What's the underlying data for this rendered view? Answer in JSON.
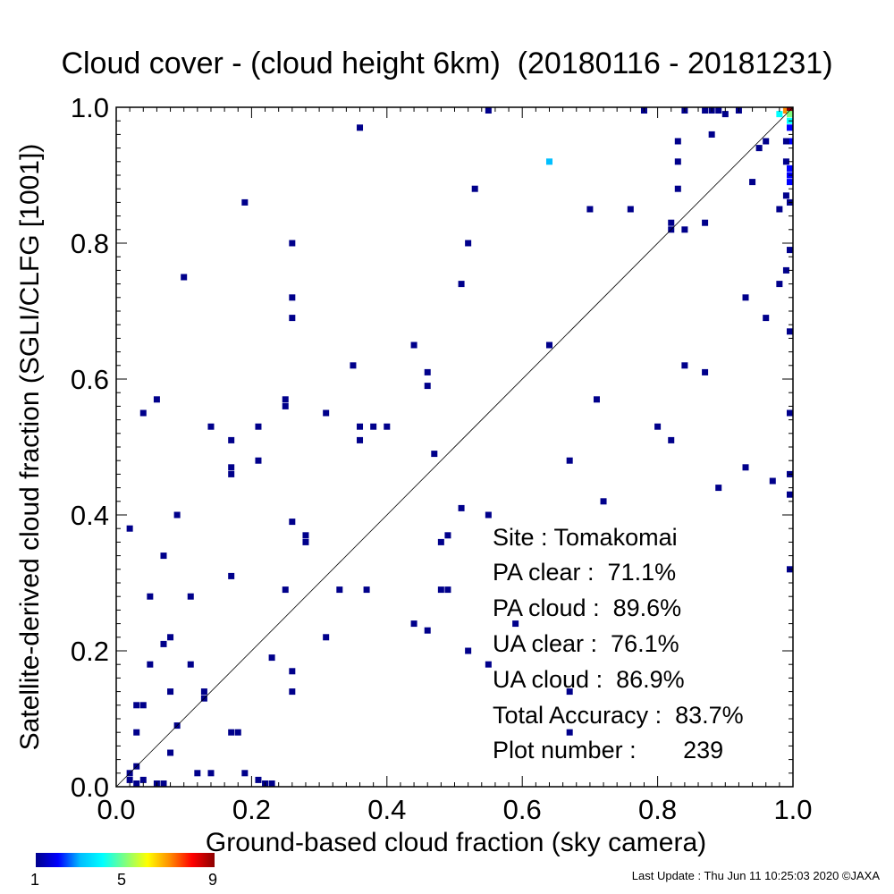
{
  "title": "Cloud cover - (cloud height 6km)  (20180116 - 20181231)",
  "footer": "Last Update : Thu Jun 11 10:25:03 2020  ©JAXA",
  "colorbar": {
    "labels": [
      "1",
      "5",
      "9"
    ],
    "colors": [
      "#00008b",
      "#0000ff",
      "#00bfff",
      "#00ffff",
      "#7fff7f",
      "#ffff00",
      "#ff8c00",
      "#ff0000",
      "#8b0000"
    ]
  },
  "stats": {
    "site": "Site : Tomakomai",
    "pa_clear": "PA clear :  71.1%",
    "pa_cloud": "PA cloud :  89.6%",
    "ua_clear": "UA clear :  76.1%",
    "ua_cloud": "UA cloud :  86.9%",
    "total_accuracy": "Total Accuracy :  83.7%",
    "plot_number": "Plot number :       239"
  },
  "chart_data": {
    "type": "heatmap",
    "xlabel": "Ground-based cloud fraction (sky camera)",
    "ylabel": "Satellite-derived cloud fraction (SGLI/CLFG [1001])",
    "xlim": [
      0.0,
      1.0
    ],
    "ylim": [
      0.0,
      1.0
    ],
    "x_ticks": [
      "0.0",
      "0.2",
      "0.4",
      "0.6",
      "0.8",
      "1.0"
    ],
    "y_ticks": [
      "0.0",
      "0.2",
      "0.4",
      "0.6",
      "0.8",
      "1.0"
    ],
    "diagonal_line": true,
    "color_scale_range": [
      1,
      9
    ],
    "points": [
      [
        0.55,
        1.0,
        1
      ],
      [
        0.36,
        0.97,
        1
      ],
      [
        0.64,
        0.92,
        3
      ],
      [
        0.53,
        0.88,
        1
      ],
      [
        0.19,
        0.86,
        1
      ],
      [
        0.7,
        0.85,
        1
      ],
      [
        0.76,
        0.85,
        1
      ],
      [
        0.26,
        0.8,
        1
      ],
      [
        0.52,
        0.8,
        1
      ],
      [
        0.1,
        0.75,
        1
      ],
      [
        0.51,
        0.74,
        1
      ],
      [
        0.26,
        0.72,
        1
      ],
      [
        0.26,
        0.69,
        1
      ],
      [
        0.44,
        0.65,
        1
      ],
      [
        0.64,
        0.65,
        1
      ],
      [
        0.35,
        0.62,
        1
      ],
      [
        0.46,
        0.61,
        1
      ],
      [
        0.46,
        0.59,
        1
      ],
      [
        0.06,
        0.57,
        1
      ],
      [
        0.25,
        0.57,
        1
      ],
      [
        0.25,
        0.56,
        1
      ],
      [
        0.04,
        0.55,
        1
      ],
      [
        0.31,
        0.55,
        1
      ],
      [
        0.71,
        0.57,
        1
      ],
      [
        0.14,
        0.53,
        1
      ],
      [
        0.21,
        0.53,
        1
      ],
      [
        0.36,
        0.53,
        1
      ],
      [
        0.38,
        0.53,
        1
      ],
      [
        0.4,
        0.53,
        1
      ],
      [
        0.17,
        0.51,
        1
      ],
      [
        0.36,
        0.51,
        1
      ],
      [
        0.8,
        0.53,
        1
      ],
      [
        0.82,
        0.51,
        1
      ],
      [
        0.47,
        0.49,
        1
      ],
      [
        0.21,
        0.48,
        1
      ],
      [
        0.67,
        0.48,
        1
      ],
      [
        0.17,
        0.47,
        1
      ],
      [
        0.17,
        0.46,
        1
      ],
      [
        0.93,
        0.47,
        1
      ],
      [
        0.97,
        0.45,
        1
      ],
      [
        0.89,
        0.44,
        1
      ],
      [
        0.72,
        0.42,
        1
      ],
      [
        0.51,
        0.41,
        1
      ],
      [
        0.09,
        0.4,
        1
      ],
      [
        0.55,
        0.4,
        1
      ],
      [
        0.26,
        0.39,
        1
      ],
      [
        0.02,
        0.38,
        1
      ],
      [
        0.28,
        0.37,
        1
      ],
      [
        0.49,
        0.37,
        1
      ],
      [
        0.28,
        0.36,
        1
      ],
      [
        0.48,
        0.36,
        1
      ],
      [
        0.07,
        0.34,
        1
      ],
      [
        0.17,
        0.31,
        1
      ],
      [
        0.25,
        0.29,
        1
      ],
      [
        0.33,
        0.29,
        1
      ],
      [
        0.37,
        0.29,
        1
      ],
      [
        0.48,
        0.29,
        1
      ],
      [
        0.49,
        0.29,
        1
      ],
      [
        0.05,
        0.28,
        1
      ],
      [
        0.11,
        0.28,
        1
      ],
      [
        0.44,
        0.24,
        1
      ],
      [
        0.46,
        0.23,
        1
      ],
      [
        0.59,
        0.24,
        1
      ],
      [
        0.31,
        0.22,
        1
      ],
      [
        0.08,
        0.22,
        1
      ],
      [
        0.07,
        0.21,
        1
      ],
      [
        0.52,
        0.2,
        1
      ],
      [
        0.23,
        0.19,
        1
      ],
      [
        0.05,
        0.18,
        1
      ],
      [
        0.11,
        0.18,
        1
      ],
      [
        0.55,
        0.18,
        1
      ],
      [
        0.26,
        0.17,
        1
      ],
      [
        0.08,
        0.14,
        1
      ],
      [
        0.13,
        0.14,
        1
      ],
      [
        0.26,
        0.14,
        1
      ],
      [
        0.67,
        0.14,
        1
      ],
      [
        0.13,
        0.13,
        1
      ],
      [
        0.03,
        0.12,
        1
      ],
      [
        0.04,
        0.12,
        1
      ],
      [
        0.09,
        0.09,
        1
      ],
      [
        0.03,
        0.08,
        1
      ],
      [
        0.17,
        0.08,
        1
      ],
      [
        0.18,
        0.08,
        1
      ],
      [
        0.67,
        0.08,
        1
      ],
      [
        0.08,
        0.05,
        1
      ],
      [
        0.03,
        0.03,
        1
      ],
      [
        0.02,
        0.02,
        1
      ],
      [
        0.12,
        0.02,
        1
      ],
      [
        0.14,
        0.02,
        1
      ],
      [
        0.19,
        0.02,
        1
      ],
      [
        0.02,
        0.01,
        1
      ],
      [
        0.04,
        0.01,
        1
      ],
      [
        0.21,
        0.01,
        1
      ],
      [
        0.22,
        0.0,
        1
      ],
      [
        0.23,
        0.0,
        1
      ],
      [
        0.06,
        0.0,
        1
      ],
      [
        0.07,
        0.0,
        1
      ],
      [
        0.03,
        0.0,
        1
      ],
      [
        0.78,
        1.0,
        1
      ],
      [
        0.84,
        1.0,
        1
      ],
      [
        0.87,
        1.0,
        1
      ],
      [
        0.88,
        1.0,
        1
      ],
      [
        0.89,
        1.0,
        1
      ],
      [
        0.9,
        0.99,
        1
      ],
      [
        0.92,
        1.0,
        1
      ],
      [
        0.98,
        0.99,
        4
      ],
      [
        0.99,
        1.0,
        7
      ],
      [
        1.0,
        1.0,
        9
      ],
      [
        1.0,
        0.99,
        5
      ],
      [
        1.0,
        0.98,
        4
      ],
      [
        1.0,
        0.97,
        2
      ],
      [
        1.0,
        0.95,
        2
      ],
      [
        0.99,
        0.95,
        1
      ],
      [
        0.96,
        0.95,
        1
      ],
      [
        1.0,
        0.91,
        2
      ],
      [
        1.0,
        0.9,
        2
      ],
      [
        1.0,
        0.89,
        2
      ],
      [
        0.99,
        0.92,
        1
      ],
      [
        0.95,
        0.94,
        1
      ],
      [
        0.94,
        0.89,
        1
      ],
      [
        0.88,
        0.96,
        1
      ],
      [
        0.83,
        0.95,
        1
      ],
      [
        0.83,
        0.92,
        1
      ],
      [
        0.83,
        0.88,
        1
      ],
      [
        0.82,
        0.83,
        1
      ],
      [
        0.82,
        0.82,
        1
      ],
      [
        0.84,
        0.82,
        1
      ],
      [
        0.87,
        0.83,
        1
      ],
      [
        0.98,
        0.85,
        1
      ],
      [
        0.99,
        0.87,
        1
      ],
      [
        1.0,
        0.86,
        1
      ],
      [
        1.0,
        0.79,
        1
      ],
      [
        0.99,
        0.76,
        1
      ],
      [
        0.98,
        0.74,
        1
      ],
      [
        0.93,
        0.72,
        1
      ],
      [
        0.96,
        0.69,
        1
      ],
      [
        1.0,
        0.67,
        1
      ],
      [
        0.84,
        0.62,
        1
      ],
      [
        0.87,
        0.61,
        1
      ],
      [
        1.0,
        0.55,
        1
      ],
      [
        1.0,
        0.46,
        1
      ],
      [
        1.0,
        0.43,
        1
      ],
      [
        1.0,
        0.32,
        1
      ]
    ]
  }
}
